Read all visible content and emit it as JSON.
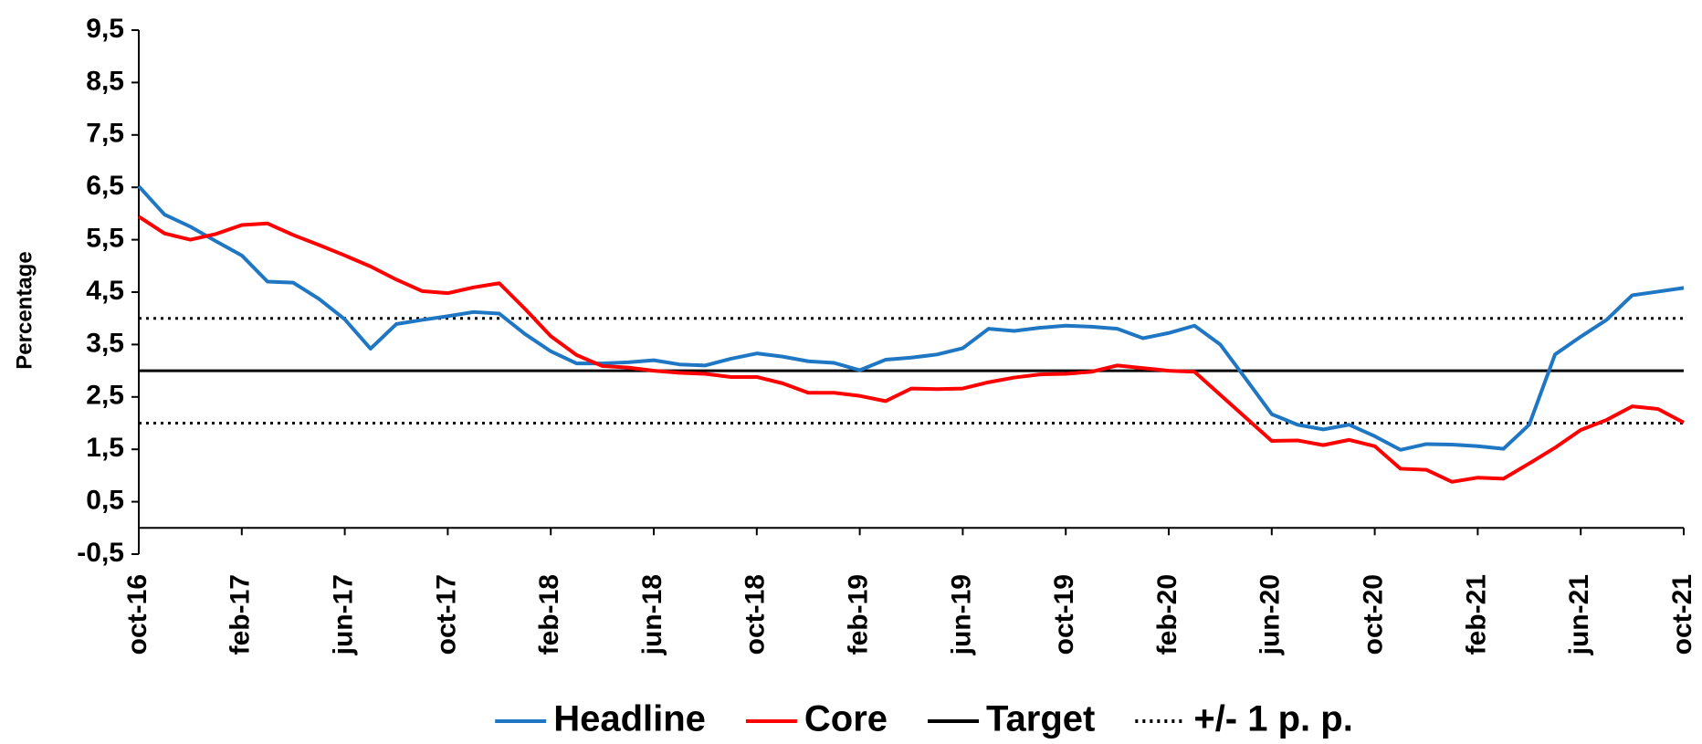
{
  "chart_data": {
    "type": "line",
    "y_label": "Percentage",
    "categories": [
      "oct-16",
      null,
      null,
      null,
      "feb-17",
      null,
      null,
      null,
      "jun-17",
      null,
      null,
      null,
      "oct-17",
      null,
      null,
      null,
      "feb-18",
      null,
      null,
      null,
      "jun-18",
      null,
      null,
      null,
      "oct-18",
      null,
      null,
      null,
      "feb-19",
      null,
      null,
      null,
      "jun-19",
      null,
      null,
      null,
      "oct-19",
      null,
      null,
      null,
      "feb-20",
      null,
      null,
      null,
      "jun-20",
      null,
      null,
      null,
      "oct-20",
      null,
      null,
      null,
      "feb-21",
      null,
      null,
      null,
      "jun-21",
      null,
      null,
      null,
      "oct-21"
    ],
    "series": [
      {
        "name": "Headline",
        "color": "#1f77c4",
        "values": [
          6.52,
          5.98,
          5.75,
          5.47,
          5.2,
          4.7,
          4.68,
          4.37,
          3.98,
          3.42,
          3.89,
          3.97,
          4.04,
          4.12,
          4.09,
          3.7,
          3.37,
          3.14,
          3.14,
          3.16,
          3.2,
          3.12,
          3.1,
          3.23,
          3.33,
          3.27,
          3.18,
          3.15,
          3.01,
          3.21,
          3.25,
          3.31,
          3.43,
          3.8,
          3.76,
          3.82,
          3.86,
          3.84,
          3.8,
          3.62,
          3.72,
          3.86,
          3.5,
          2.84,
          2.17,
          1.97,
          1.88,
          1.97,
          1.75,
          1.49,
          1.6,
          1.59,
          1.56,
          1.51,
          1.97,
          3.31,
          3.65,
          3.97,
          4.44,
          4.51,
          4.58
        ]
      },
      {
        "name": "Core",
        "color": "#ff0000",
        "values": [
          5.94,
          5.62,
          5.5,
          5.61,
          5.78,
          5.81,
          5.59,
          5.4,
          5.2,
          4.99,
          4.74,
          4.52,
          4.48,
          4.59,
          4.67,
          4.18,
          3.66,
          3.3,
          3.09,
          3.06,
          3.0,
          2.96,
          2.94,
          2.88,
          2.88,
          2.76,
          2.58,
          2.58,
          2.52,
          2.42,
          2.66,
          2.65,
          2.66,
          2.78,
          2.87,
          2.93,
          2.94,
          2.98,
          3.1,
          3.05,
          3.0,
          2.98,
          2.54,
          2.1,
          1.66,
          1.67,
          1.58,
          1.68,
          1.56,
          1.13,
          1.11,
          0.88,
          0.96,
          0.94,
          1.23,
          1.53,
          1.87,
          2.06,
          2.32,
          2.27,
          2.01
        ]
      }
    ],
    "reference_lines": [
      {
        "name": "Target",
        "color": "#000000",
        "dash": "solid",
        "values": [
          3
        ]
      },
      {
        "name": "+/- 1 p. p.",
        "color": "#000000",
        "dash": "dotted",
        "values": [
          2,
          4
        ]
      }
    ],
    "ylim": [
      -0.5,
      9.5
    ],
    "yticks": [
      {
        "value": -0.5,
        "label": "-0,5"
      },
      {
        "value": 0.5,
        "label": "0,5"
      },
      {
        "value": 1.5,
        "label": "1,5"
      },
      {
        "value": 2.5,
        "label": "2,5"
      },
      {
        "value": 3.5,
        "label": "3,5"
      },
      {
        "value": 4.5,
        "label": "4,5"
      },
      {
        "value": 5.5,
        "label": "5,5"
      },
      {
        "value": 6.5,
        "label": "6,5"
      },
      {
        "value": 7.5,
        "label": "7,5"
      },
      {
        "value": 8.5,
        "label": "8,5"
      },
      {
        "value": 9.5,
        "label": "9,5"
      }
    ],
    "x_axis_at": 0,
    "legend": "bottom"
  }
}
